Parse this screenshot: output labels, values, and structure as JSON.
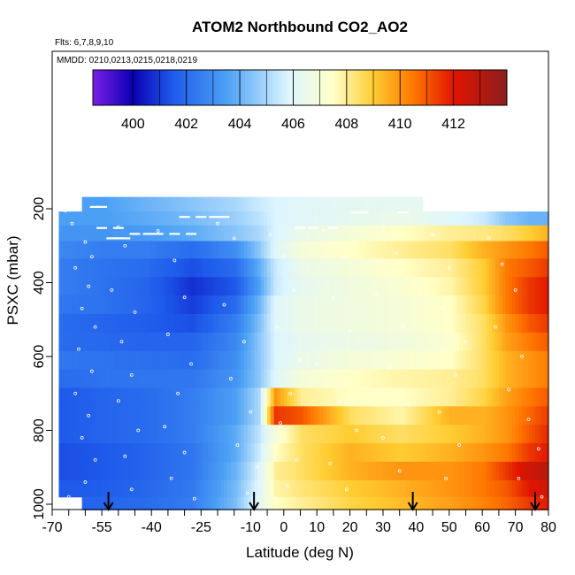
{
  "chart_data": {
    "type": "heatmap",
    "title": "ATOM2 Northbound CO2_AO2",
    "subtitle_flights": "Flts: 6,7,8,9,10",
    "subtitle_dates": "MMDD: 0210,0213,0215,0218,0219",
    "xlabel": "Latitude (deg N)",
    "ylabel": "PSXC (mbar)",
    "xlim": [
      -70,
      80
    ],
    "ylim": [
      1020,
      0
    ],
    "x_ticks": [
      -70,
      -55,
      -40,
      -25,
      -10,
      0,
      10,
      20,
      30,
      40,
      50,
      60,
      70,
      80
    ],
    "x_tick_labels": [
      "-70",
      "-55",
      "-40",
      "-25",
      "-10",
      "0",
      "10",
      "20",
      "30",
      "40",
      "50",
      "60",
      "70",
      "80"
    ],
    "y_ticks": [
      200,
      400,
      600,
      800,
      1000
    ],
    "y_tick_labels": [
      "200",
      "400",
      "600",
      "800",
      "1000"
    ],
    "colorbar": {
      "min": 398.5,
      "max": 414,
      "ticks": [
        400,
        402,
        404,
        406,
        408,
        410,
        412
      ],
      "tick_labels": [
        "400",
        "402",
        "404",
        "406",
        "408",
        "410",
        "412"
      ],
      "colors": [
        "#7a1ee6",
        "#0a00b4",
        "#1e5aeb",
        "#4ba0f5",
        "#dcf5ff",
        "#ffffc8",
        "#ffcd32",
        "#ff7800",
        "#e11400",
        "#8c1e1e"
      ],
      "color_stops": [
        398.5,
        400,
        401.5,
        403.5,
        405.8,
        407.5,
        409,
        410.5,
        412,
        414
      ]
    },
    "pressure_levels": [
      190,
      225,
      265,
      310,
      360,
      410,
      460,
      510,
      560,
      610,
      660,
      710,
      760,
      810,
      860,
      910,
      960,
      1000
    ],
    "latitude_nodes": [
      -68,
      -55,
      -42,
      -28,
      -15,
      -8,
      -3,
      5,
      20,
      35,
      50,
      60,
      67,
      74,
      80
    ],
    "co2_values": [
      [
        null,
        403.5,
        404.0,
        404.5,
        405.0,
        405.5,
        405.8,
        406.0,
        406.2,
        406.3,
        null,
        null,
        null,
        null,
        null
      ],
      [
        403.5,
        403.5,
        403.8,
        404.2,
        404.8,
        405.3,
        405.8,
        406.0,
        406.3,
        406.5,
        406.0,
        405.5,
        404.5,
        404.0,
        null
      ],
      [
        403.2,
        403.2,
        403.4,
        403.8,
        404.5,
        405.0,
        405.8,
        406.5,
        407.0,
        407.5,
        408.0,
        408.2,
        408.5,
        409.0,
        409.5
      ],
      [
        402.8,
        402.5,
        402.5,
        402.0,
        403.0,
        404.5,
        406.0,
        407.0,
        407.5,
        408.0,
        408.5,
        409.5,
        410.0,
        410.5,
        411.0
      ],
      [
        402.5,
        402.2,
        402.0,
        401.3,
        402.0,
        403.8,
        405.5,
        406.5,
        407.0,
        407.5,
        408.0,
        409.0,
        410.5,
        411.0,
        411.5
      ],
      [
        402.5,
        402.2,
        401.8,
        400.8,
        401.5,
        403.5,
        405.5,
        406.3,
        406.8,
        407.2,
        407.8,
        409.0,
        410.5,
        411.5,
        412.0
      ],
      [
        402.3,
        402.2,
        401.8,
        401.0,
        402.0,
        404.0,
        406.0,
        406.5,
        406.8,
        407.0,
        407.5,
        408.8,
        410.5,
        411.5,
        412.0
      ],
      [
        402.0,
        401.8,
        401.6,
        401.3,
        402.5,
        404.3,
        406.0,
        406.5,
        406.8,
        407.0,
        407.5,
        408.5,
        410.0,
        411.0,
        411.5
      ],
      [
        402.0,
        401.9,
        401.8,
        401.8,
        402.8,
        404.5,
        405.8,
        406.3,
        406.6,
        406.8,
        407.3,
        408.5,
        409.8,
        410.5,
        411.0
      ],
      [
        402.3,
        402.2,
        402.1,
        402.0,
        403.0,
        404.5,
        405.8,
        406.5,
        407.0,
        407.2,
        407.5,
        408.5,
        409.5,
        410.0,
        410.5
      ],
      [
        402.0,
        402.2,
        402.3,
        402.3,
        403.2,
        404.5,
        406.0,
        407.0,
        407.5,
        407.8,
        408.0,
        408.5,
        409.5,
        410.0,
        410.5
      ],
      [
        401.5,
        401.8,
        402.0,
        402.5,
        403.5,
        405.0,
        410.0,
        408.0,
        407.5,
        407.5,
        408.0,
        408.8,
        409.8,
        410.5,
        411.0
      ],
      [
        401.5,
        401.8,
        402.0,
        402.5,
        403.5,
        405.0,
        411.5,
        411.0,
        408.5,
        407.8,
        409.5,
        409.5,
        410.0,
        410.8,
        411.5
      ],
      [
        401.5,
        401.8,
        402.0,
        402.5,
        403.8,
        405.3,
        407.0,
        408.5,
        409.0,
        408.5,
        409.0,
        409.5,
        410.0,
        411.0,
        411.8
      ],
      [
        401.3,
        401.5,
        401.8,
        402.3,
        403.8,
        405.5,
        407.5,
        408.5,
        409.5,
        409.0,
        409.5,
        410.0,
        410.5,
        411.5,
        412.0
      ],
      [
        401.3,
        401.5,
        401.8,
        402.3,
        404.0,
        405.8,
        408.0,
        408.5,
        409.5,
        410.0,
        410.0,
        410.5,
        411.5,
        412.5,
        413.0
      ],
      [
        401.5,
        401.6,
        401.9,
        402.4,
        404.2,
        406.0,
        407.8,
        408.3,
        409.0,
        409.5,
        410.0,
        410.5,
        411.0,
        412.0,
        412.5
      ],
      [
        null,
        401.8,
        402.0,
        402.5,
        404.3,
        406.2,
        407.5,
        408.0,
        408.8,
        409.3,
        409.8,
        410.3,
        410.8,
        411.5,
        412.0
      ]
    ],
    "arrow_markers_latitude": [
      -53,
      -9,
      39,
      76
    ],
    "sample_points": [
      [
        -66,
        205
      ],
      [
        -64,
        240
      ],
      [
        -60,
        290
      ],
      [
        -58,
        330
      ],
      [
        -63,
        360
      ],
      [
        -59,
        410
      ],
      [
        -61,
        470
      ],
      [
        -57,
        520
      ],
      [
        -62,
        580
      ],
      [
        -58,
        640
      ],
      [
        -63,
        700
      ],
      [
        -59,
        760
      ],
      [
        -61,
        820
      ],
      [
        -57,
        880
      ],
      [
        -60,
        940
      ],
      [
        -65,
        980
      ],
      [
        -50,
        250
      ],
      [
        -48,
        300
      ],
      [
        -52,
        420
      ],
      [
        -45,
        480
      ],
      [
        -49,
        560
      ],
      [
        -46,
        650
      ],
      [
        -50,
        720
      ],
      [
        -44,
        800
      ],
      [
        -48,
        870
      ],
      [
        -46,
        960
      ],
      [
        -38,
        260
      ],
      [
        -33,
        340
      ],
      [
        -30,
        440
      ],
      [
        -35,
        540
      ],
      [
        -28,
        620
      ],
      [
        -32,
        700
      ],
      [
        -36,
        790
      ],
      [
        -30,
        860
      ],
      [
        -34,
        930
      ],
      [
        -27,
        985
      ],
      [
        -20,
        240
      ],
      [
        -15,
        280
      ],
      [
        -18,
        460
      ],
      [
        -12,
        560
      ],
      [
        -16,
        660
      ],
      [
        -10,
        750
      ],
      [
        -14,
        840
      ],
      [
        -8,
        900
      ],
      [
        -11,
        970
      ],
      [
        -4,
        270
      ],
      [
        0,
        330
      ],
      [
        3,
        420
      ],
      [
        -2,
        520
      ],
      [
        5,
        610
      ],
      [
        2,
        700
      ],
      [
        -1,
        780
      ],
      [
        4,
        880
      ],
      [
        1,
        950
      ],
      [
        12,
        260
      ],
      [
        18,
        330
      ],
      [
        15,
        440
      ],
      [
        20,
        530
      ],
      [
        10,
        620
      ],
      [
        17,
        720
      ],
      [
        22,
        800
      ],
      [
        14,
        890
      ],
      [
        19,
        960
      ],
      [
        30,
        250
      ],
      [
        34,
        320
      ],
      [
        28,
        430
      ],
      [
        36,
        520
      ],
      [
        32,
        630
      ],
      [
        38,
        730
      ],
      [
        30,
        820
      ],
      [
        35,
        910
      ],
      [
        45,
        270
      ],
      [
        50,
        360
      ],
      [
        48,
        470
      ],
      [
        55,
        560
      ],
      [
        52,
        650
      ],
      [
        47,
        750
      ],
      [
        53,
        840
      ],
      [
        49,
        930
      ],
      [
        62,
        280
      ],
      [
        66,
        350
      ],
      [
        70,
        420
      ],
      [
        64,
        520
      ],
      [
        72,
        600
      ],
      [
        68,
        690
      ],
      [
        74,
        770
      ],
      [
        77,
        850
      ],
      [
        71,
        930
      ],
      [
        78,
        980
      ]
    ],
    "flight_tracks": [
      {
        "p": 195,
        "lat": [
          -57,
          -55
        ]
      },
      {
        "p": 210,
        "lat": [
          22,
          24,
          36
        ]
      },
      {
        "p": 222,
        "lat": [
          -30,
          -25,
          -21,
          -18
        ]
      },
      {
        "p": 252,
        "lat": [
          -55,
          -50,
          5,
          9,
          15
        ]
      },
      {
        "p": 268,
        "lat": [
          -45,
          -41,
          -38,
          -33,
          -28
        ]
      },
      {
        "p": 280,
        "lat": [
          -52,
          -50,
          -48
        ]
      }
    ]
  }
}
